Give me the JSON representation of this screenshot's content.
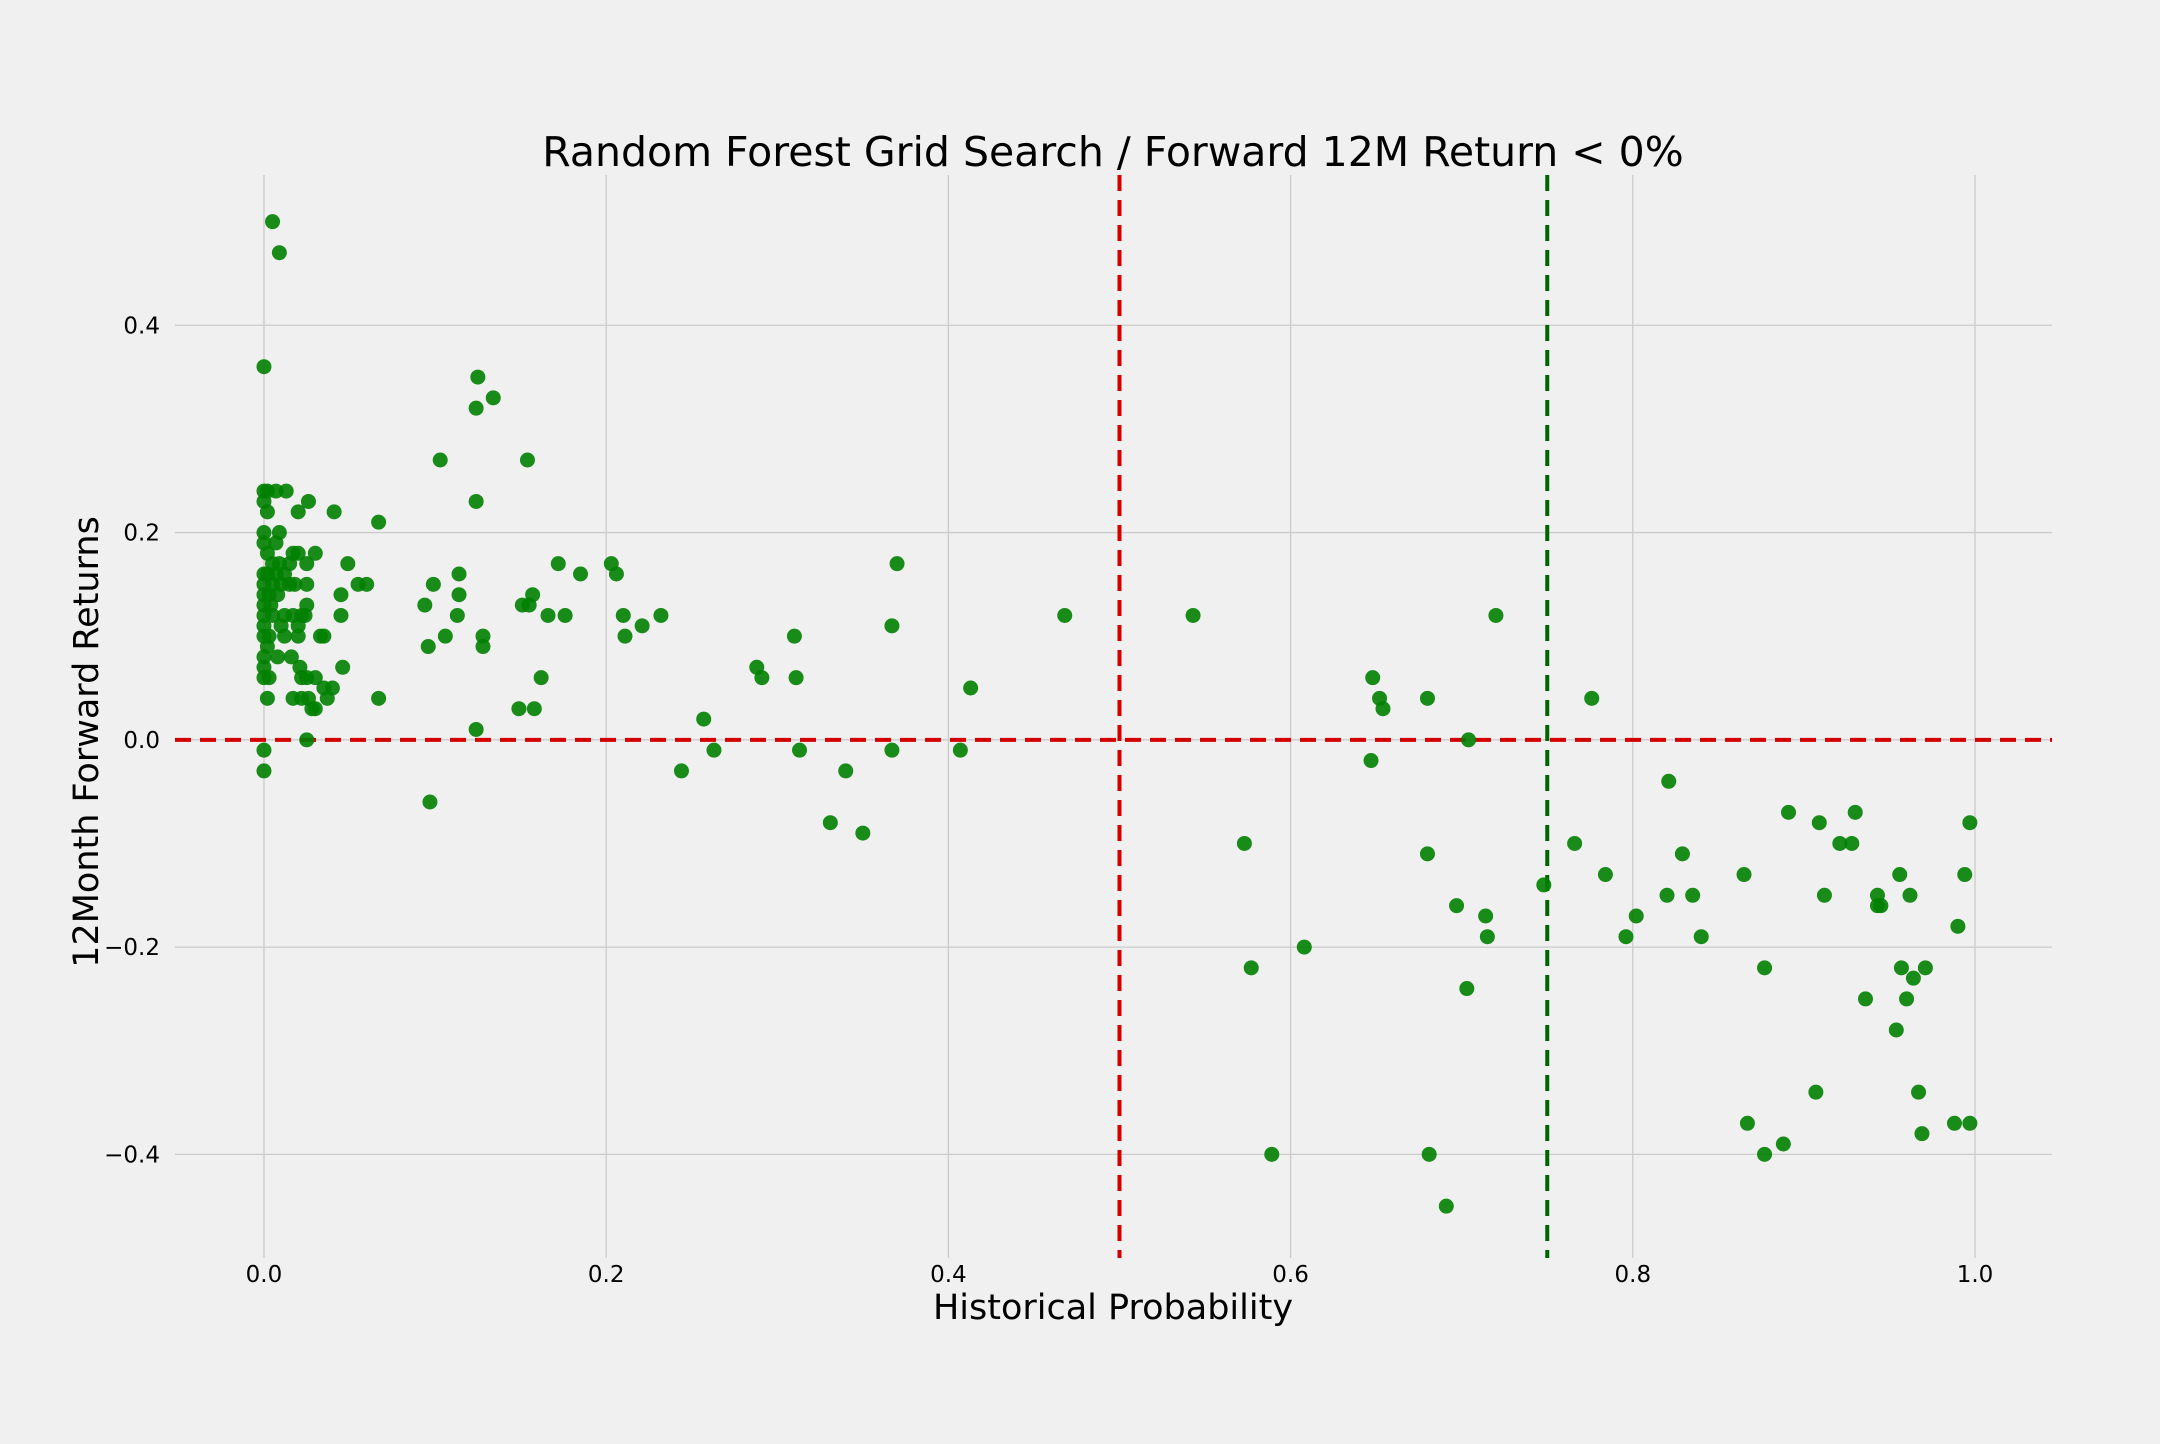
{
  "chart_data": {
    "type": "scatter",
    "title": "Random Forest Grid Search / Forward 12M Return < 0%",
    "xlabel": "Historical Probability",
    "ylabel": "12Month Forward Returns",
    "xlim": [
      -0.052,
      1.045
    ],
    "ylim": [
      -0.5,
      0.545
    ],
    "xticks": [
      0.0,
      0.2,
      0.4,
      0.6,
      0.8,
      1.0
    ],
    "xtick_labels": [
      "0.0",
      "0.2",
      "0.4",
      "0.6",
      "0.8",
      "1.0"
    ],
    "yticks": [
      -0.4,
      -0.2,
      0.0,
      0.2,
      0.4
    ],
    "ytick_labels": [
      "−0.4",
      "−0.2",
      "0.0",
      "0.2",
      "0.4"
    ],
    "grid": true,
    "point_color": "#008000",
    "reference_lines": [
      {
        "orientation": "horizontal",
        "value": 0.0,
        "color": "#d40000",
        "style": "dashed"
      },
      {
        "orientation": "vertical",
        "value": 0.5,
        "color": "#d40000",
        "style": "dashed"
      },
      {
        "orientation": "vertical",
        "value": 0.75,
        "color": "#006400",
        "style": "dashed"
      }
    ],
    "points": [
      [
        0.005,
        0.5
      ],
      [
        0.009,
        0.47
      ],
      [
        0.0,
        0.36
      ],
      [
        0.0,
        0.24
      ],
      [
        0.002,
        0.24
      ],
      [
        0.007,
        0.24
      ],
      [
        0.013,
        0.24
      ],
      [
        0.0,
        0.23
      ],
      [
        0.026,
        0.23
      ],
      [
        0.002,
        0.22
      ],
      [
        0.02,
        0.22
      ],
      [
        0.041,
        0.22
      ],
      [
        0.0,
        0.2
      ],
      [
        0.009,
        0.2
      ],
      [
        0.0,
        0.19
      ],
      [
        0.007,
        0.19
      ],
      [
        0.002,
        0.18
      ],
      [
        0.017,
        0.18
      ],
      [
        0.02,
        0.18
      ],
      [
        0.03,
        0.18
      ],
      [
        0.005,
        0.17
      ],
      [
        0.009,
        0.17
      ],
      [
        0.015,
        0.17
      ],
      [
        0.025,
        0.17
      ],
      [
        0.049,
        0.17
      ],
      [
        0.0,
        0.16
      ],
      [
        0.002,
        0.16
      ],
      [
        0.007,
        0.16
      ],
      [
        0.012,
        0.16
      ],
      [
        0.0,
        0.15
      ],
      [
        0.005,
        0.15
      ],
      [
        0.01,
        0.15
      ],
      [
        0.015,
        0.15
      ],
      [
        0.018,
        0.15
      ],
      [
        0.025,
        0.15
      ],
      [
        0.055,
        0.15
      ],
      [
        0.06,
        0.15
      ],
      [
        0.0,
        0.14
      ],
      [
        0.003,
        0.14
      ],
      [
        0.008,
        0.14
      ],
      [
        0.045,
        0.14
      ],
      [
        0.0,
        0.13
      ],
      [
        0.004,
        0.13
      ],
      [
        0.025,
        0.13
      ],
      [
        0.0,
        0.12
      ],
      [
        0.005,
        0.12
      ],
      [
        0.012,
        0.12
      ],
      [
        0.017,
        0.12
      ],
      [
        0.022,
        0.12
      ],
      [
        0.024,
        0.12
      ],
      [
        0.045,
        0.12
      ],
      [
        0.0,
        0.11
      ],
      [
        0.01,
        0.11
      ],
      [
        0.02,
        0.11
      ],
      [
        0.0,
        0.1
      ],
      [
        0.003,
        0.1
      ],
      [
        0.012,
        0.1
      ],
      [
        0.02,
        0.1
      ],
      [
        0.033,
        0.1
      ],
      [
        0.035,
        0.1
      ],
      [
        0.002,
        0.09
      ],
      [
        0.0,
        0.08
      ],
      [
        0.008,
        0.08
      ],
      [
        0.016,
        0.08
      ],
      [
        0.0,
        0.07
      ],
      [
        0.021,
        0.07
      ],
      [
        0.046,
        0.07
      ],
      [
        0.0,
        0.06
      ],
      [
        0.003,
        0.06
      ],
      [
        0.022,
        0.06
      ],
      [
        0.025,
        0.06
      ],
      [
        0.03,
        0.06
      ],
      [
        0.035,
        0.05
      ],
      [
        0.04,
        0.05
      ],
      [
        0.002,
        0.04
      ],
      [
        0.017,
        0.04
      ],
      [
        0.022,
        0.04
      ],
      [
        0.026,
        0.04
      ],
      [
        0.037,
        0.04
      ],
      [
        0.067,
        0.04
      ],
      [
        0.028,
        0.03
      ],
      [
        0.03,
        0.03
      ],
      [
        0.025,
        0.0
      ],
      [
        0.0,
        -0.01
      ],
      [
        0.0,
        -0.03
      ],
      [
        0.067,
        0.21
      ],
      [
        0.125,
        0.35
      ],
      [
        0.124,
        0.32
      ],
      [
        0.134,
        0.33
      ],
      [
        0.103,
        0.27
      ],
      [
        0.154,
        0.27
      ],
      [
        0.124,
        0.23
      ],
      [
        0.172,
        0.17
      ],
      [
        0.203,
        0.17
      ],
      [
        0.114,
        0.16
      ],
      [
        0.185,
        0.16
      ],
      [
        0.206,
        0.16
      ],
      [
        0.099,
        0.15
      ],
      [
        0.114,
        0.14
      ],
      [
        0.157,
        0.14
      ],
      [
        0.094,
        0.13
      ],
      [
        0.151,
        0.13
      ],
      [
        0.155,
        0.13
      ],
      [
        0.113,
        0.12
      ],
      [
        0.166,
        0.12
      ],
      [
        0.176,
        0.12
      ],
      [
        0.21,
        0.12
      ],
      [
        0.232,
        0.12
      ],
      [
        0.221,
        0.11
      ],
      [
        0.106,
        0.1
      ],
      [
        0.128,
        0.1
      ],
      [
        0.211,
        0.1
      ],
      [
        0.096,
        0.09
      ],
      [
        0.128,
        0.09
      ],
      [
        0.162,
        0.06
      ],
      [
        0.149,
        0.03
      ],
      [
        0.158,
        0.03
      ],
      [
        0.124,
        0.01
      ],
      [
        0.097,
        -0.06
      ],
      [
        0.37,
        0.17
      ],
      [
        0.468,
        0.12
      ],
      [
        0.367,
        0.11
      ],
      [
        0.31,
        0.1
      ],
      [
        0.288,
        0.07
      ],
      [
        0.291,
        0.06
      ],
      [
        0.311,
        0.06
      ],
      [
        0.413,
        0.05
      ],
      [
        0.257,
        0.02
      ],
      [
        0.263,
        -0.01
      ],
      [
        0.313,
        -0.01
      ],
      [
        0.367,
        -0.01
      ],
      [
        0.407,
        -0.01
      ],
      [
        0.244,
        -0.03
      ],
      [
        0.34,
        -0.03
      ],
      [
        0.331,
        -0.08
      ],
      [
        0.35,
        -0.09
      ],
      [
        0.543,
        0.12
      ],
      [
        0.573,
        -0.1
      ],
      [
        0.577,
        -0.22
      ],
      [
        0.608,
        -0.2
      ],
      [
        0.589,
        -0.4
      ],
      [
        0.648,
        0.06
      ],
      [
        0.652,
        0.04
      ],
      [
        0.654,
        0.03
      ],
      [
        0.68,
        0.04
      ],
      [
        0.647,
        -0.02
      ],
      [
        0.704,
        0.0
      ],
      [
        0.72,
        0.12
      ],
      [
        0.68,
        -0.11
      ],
      [
        0.697,
        -0.16
      ],
      [
        0.714,
        -0.17
      ],
      [
        0.715,
        -0.19
      ],
      [
        0.703,
        -0.24
      ],
      [
        0.681,
        -0.4
      ],
      [
        0.691,
        -0.45
      ],
      [
        0.748,
        -0.14
      ],
      [
        0.776,
        0.04
      ],
      [
        0.766,
        -0.1
      ],
      [
        0.784,
        -0.13
      ],
      [
        0.821,
        -0.04
      ],
      [
        0.829,
        -0.11
      ],
      [
        0.82,
        -0.15
      ],
      [
        0.835,
        -0.15
      ],
      [
        0.802,
        -0.17
      ],
      [
        0.796,
        -0.19
      ],
      [
        0.84,
        -0.19
      ],
      [
        0.865,
        -0.13
      ],
      [
        0.891,
        -0.07
      ],
      [
        0.93,
        -0.07
      ],
      [
        0.909,
        -0.08
      ],
      [
        0.997,
        -0.08
      ],
      [
        0.921,
        -0.1
      ],
      [
        0.928,
        -0.1
      ],
      [
        0.956,
        -0.13
      ],
      [
        0.994,
        -0.13
      ],
      [
        0.912,
        -0.15
      ],
      [
        0.943,
        -0.15
      ],
      [
        0.962,
        -0.15
      ],
      [
        0.943,
        -0.16
      ],
      [
        0.945,
        -0.16
      ],
      [
        0.99,
        -0.18
      ],
      [
        0.877,
        -0.22
      ],
      [
        0.957,
        -0.22
      ],
      [
        0.971,
        -0.22
      ],
      [
        0.936,
        -0.25
      ],
      [
        0.96,
        -0.25
      ],
      [
        0.964,
        -0.23
      ],
      [
        0.954,
        -0.28
      ],
      [
        0.907,
        -0.34
      ],
      [
        0.967,
        -0.34
      ],
      [
        0.867,
        -0.37
      ],
      [
        0.988,
        -0.37
      ],
      [
        0.997,
        -0.37
      ],
      [
        0.969,
        -0.38
      ],
      [
        0.888,
        -0.39
      ],
      [
        0.877,
        -0.4
      ]
    ]
  }
}
